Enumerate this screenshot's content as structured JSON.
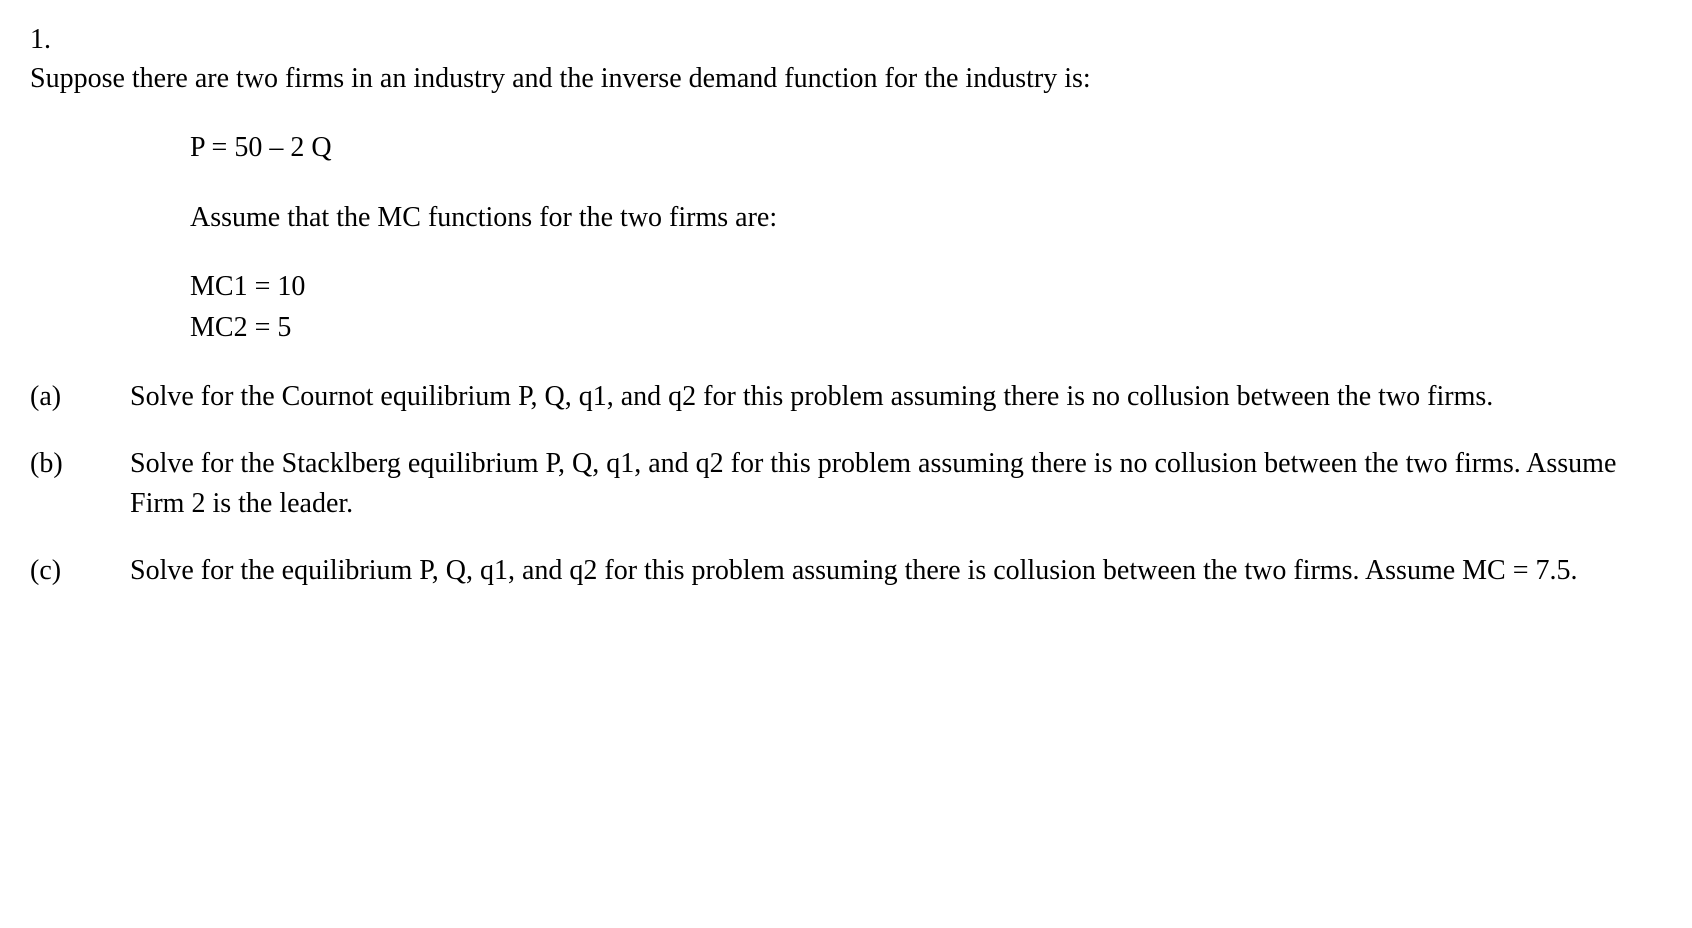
{
  "problem": {
    "number": "1.",
    "intro": "Suppose there are two firms in an industry and the inverse demand function for the industry is:",
    "equation1": "P = 50 – 2 Q",
    "mc_intro": "Assume that the MC functions for the two firms are:",
    "mc1": "MC1 = 10",
    "mc2": "MC2 = 5",
    "parts": {
      "a": {
        "label": "(a)",
        "text": "Solve for the Cournot equilibrium P, Q, q1, and q2 for this problem assuming there is no collusion between the two firms."
      },
      "b": {
        "label": "(b)",
        "text": "Solve for the Stacklberg equilibrium P, Q, q1, and q2 for this problem assuming there is no collusion between the two firms. Assume Firm 2 is the leader."
      },
      "c": {
        "label": "(c)",
        "text": "Solve for the equilibrium P, Q, q1, and q2 for this problem assuming there is collusion between the two firms.  Assume MC = 7.5."
      }
    }
  },
  "styling": {
    "font_family": "Times New Roman",
    "font_size_pt": 21,
    "text_color": "#000000",
    "background_color": "#ffffff",
    "line_height": 1.4
  }
}
